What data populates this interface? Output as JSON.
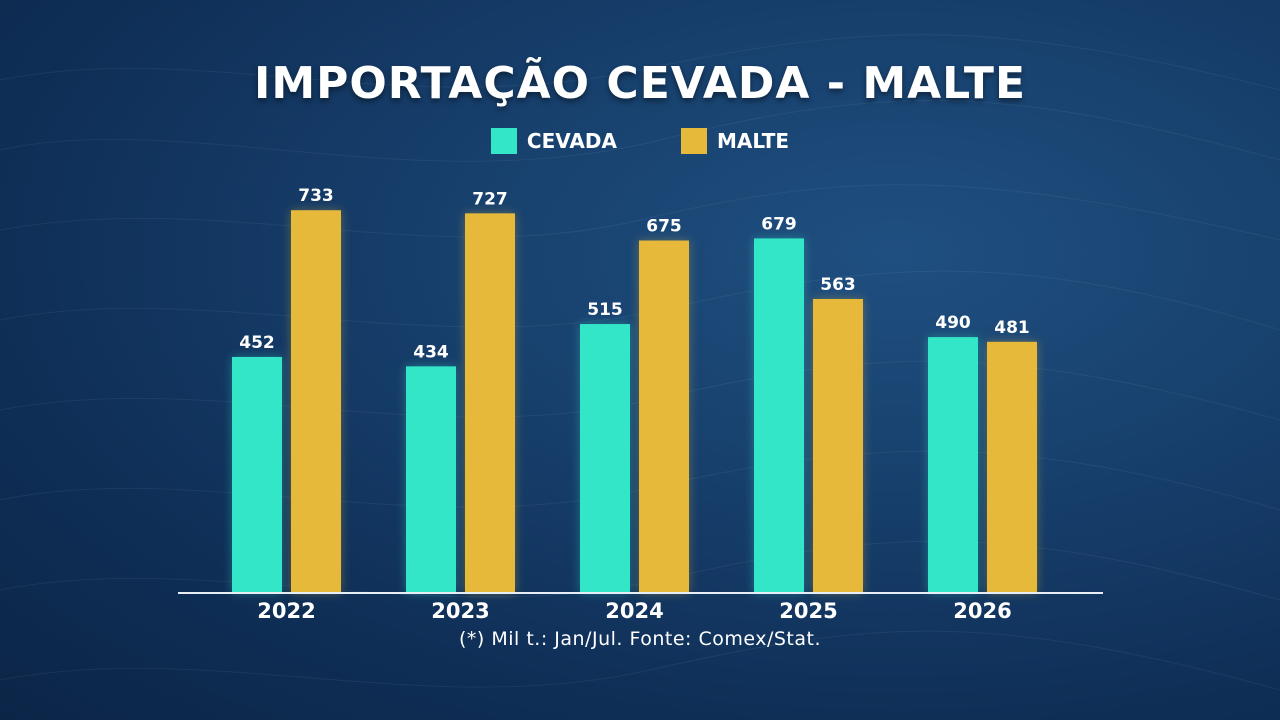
{
  "title": "IMPORTAÇÃO CEVADA - MALTE",
  "footnote": "(*) Mil t.: Jan/Jul. Fonte: Comex/Stat.",
  "colors": {
    "cevada": "#34e6c8",
    "malte": "#e6b93a",
    "axis": "#e8eef5"
  },
  "chart_data": {
    "type": "bar",
    "title": "IMPORTAÇÃO CEVADA - MALTE",
    "categories": [
      "2022",
      "2023",
      "2024",
      "2025",
      "2026"
    ],
    "series": [
      {
        "name": "CEVADA",
        "values": [
          452,
          434,
          515,
          679,
          490
        ]
      },
      {
        "name": "MALTE",
        "values": [
          733,
          727,
          675,
          563,
          481
        ]
      }
    ],
    "ylim": [
      0,
      810
    ],
    "grid": false,
    "legend": "top-center",
    "data_labels": true
  }
}
